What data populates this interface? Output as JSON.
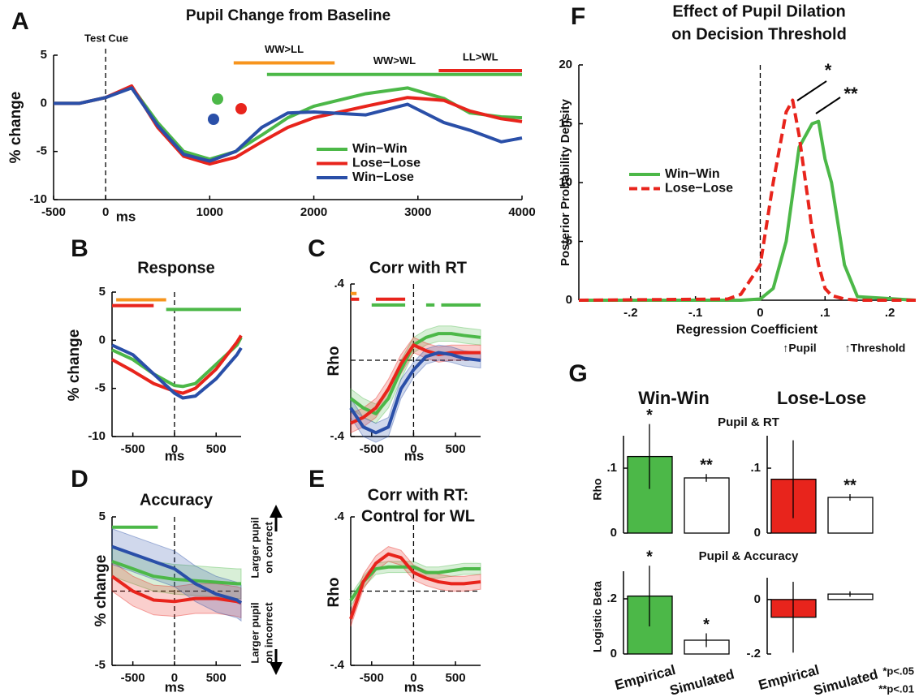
{
  "chart_data": [
    {
      "type": "line",
      "panel": "A",
      "title": "Pupil Change from Baseline",
      "xlabel": "ms",
      "ylabel": "% change",
      "legend": "lower right",
      "xlim": [
        -500,
        4000
      ],
      "ylim": [
        -10,
        5
      ],
      "xticks": [
        -500,
        0,
        1000,
        2000,
        3000,
        4000
      ],
      "yticks": [
        -10,
        -5,
        0,
        5
      ],
      "vline": 0,
      "annotations": [
        "Test Cue"
      ],
      "x": [
        -500,
        -250,
        0,
        250,
        500,
        750,
        1000,
        1250,
        1500,
        1750,
        2000,
        2500,
        2900,
        3250,
        3500,
        3800,
        4000
      ],
      "series": [
        {
          "name": "Win−Win",
          "color": "#4cb848",
          "values": [
            0,
            0,
            0.6,
            1.7,
            -2,
            -5,
            -5.8,
            -5,
            -3.3,
            -1.5,
            -0.3,
            1,
            1.6,
            0.5,
            -1,
            -1.4,
            -1.5
          ]
        },
        {
          "name": "Lose−Lose",
          "color": "#e8241c",
          "values": [
            0,
            0,
            0.6,
            1.8,
            -2.5,
            -5.5,
            -6.3,
            -5.6,
            -4,
            -2.5,
            -1.5,
            -0.3,
            0.6,
            0.3,
            -0.8,
            -1.6,
            -1.9
          ]
        },
        {
          "name": "Win−Lose",
          "color": "#2a4fa8",
          "values": [
            0,
            0,
            0.6,
            1.6,
            -2.3,
            -5.3,
            -6,
            -5,
            -2.5,
            -1,
            -0.9,
            -1.2,
            -0.1,
            -2,
            -2.8,
            -4,
            -3.6
          ]
        }
      ],
      "sig_bars": [
        {
          "label": "WW>LL",
          "color": "#f7941d",
          "x": [
            1230,
            2200
          ],
          "y": 4.2
        },
        {
          "label": "WW>WL",
          "color": "#4cb848",
          "x": [
            1550,
            4000
          ],
          "y": 3.0
        },
        {
          "label": "LL>WL",
          "color": "#e8241c",
          "x": [
            3200,
            4000
          ],
          "y": 3.4
        }
      ]
    },
    {
      "type": "line",
      "panel": "B",
      "title": "Response",
      "xlabel": "ms",
      "ylabel": "% change",
      "xlim": [
        -750,
        800
      ],
      "ylim": [
        -10,
        5
      ],
      "xticks": [
        -500,
        0,
        500
      ],
      "yticks": [
        -10,
        -5,
        0,
        5
      ],
      "vline": 0,
      "x": [
        -750,
        -500,
        -250,
        0,
        100,
        250,
        500,
        750,
        800
      ],
      "series": [
        {
          "color": "#4cb848",
          "values": [
            -1,
            -2,
            -3.5,
            -4.7,
            -4.8,
            -4.5,
            -2.5,
            -0.5,
            0.3
          ]
        },
        {
          "color": "#e8241c",
          "values": [
            -2,
            -3.2,
            -4.5,
            -5.3,
            -5.5,
            -5,
            -3,
            -0.2,
            0.5
          ]
        },
        {
          "color": "#2a4fa8",
          "values": [
            -0.5,
            -1.5,
            -3.5,
            -5.5,
            -6,
            -5.8,
            -4,
            -1.5,
            -0.8
          ]
        }
      ],
      "sig_bars": [
        {
          "color": "#f7941d",
          "x": [
            -700,
            -100
          ],
          "y": 4.2
        },
        {
          "color": "#e8241c",
          "x": [
            -750,
            -250
          ],
          "y": 3.6
        },
        {
          "color": "#4cb848",
          "x": [
            -100,
            800
          ],
          "y": 3.2
        }
      ]
    },
    {
      "type": "line",
      "panel": "C",
      "title": "Corr with RT",
      "xlabel": "ms",
      "ylabel": "Rho",
      "xlim": [
        -750,
        800
      ],
      "ylim": [
        -0.4,
        0.4
      ],
      "xticks": [
        -500,
        0,
        500
      ],
      "yticks": [
        {
          "value": -0.4,
          "label": "-.4"
        },
        {
          "value": 0.4,
          "label": ".4"
        }
      ],
      "vline": 0,
      "hline": 0,
      "x": [
        -750,
        -600,
        -450,
        -300,
        -150,
        0,
        150,
        300,
        450,
        600,
        800
      ],
      "series": [
        {
          "color": "#4cb848",
          "values": [
            -0.2,
            -0.25,
            -0.28,
            -0.2,
            -0.05,
            0.08,
            0.12,
            0.14,
            0.14,
            0.13,
            0.12
          ],
          "ci": [
            0.05,
            0.05,
            0.05,
            0.05,
            0.05,
            0.04,
            0.04,
            0.04,
            0.04,
            0.04,
            0.04
          ]
        },
        {
          "color": "#e8241c",
          "values": [
            -0.33,
            -0.3,
            -0.25,
            -0.15,
            -0.02,
            0.08,
            0.05,
            0.03,
            0.04,
            0.04,
            0.04
          ],
          "ci": [
            0.05,
            0.05,
            0.05,
            0.05,
            0.05,
            0.04,
            0.04,
            0.04,
            0.04,
            0.04,
            0.04
          ]
        },
        {
          "color": "#2a4fa8",
          "values": [
            -0.25,
            -0.35,
            -0.38,
            -0.35,
            -0.15,
            -0.05,
            0.02,
            0.04,
            0.03,
            0.01,
            0
          ],
          "ci": [
            0.05,
            0.05,
            0.05,
            0.05,
            0.05,
            0.04,
            0.04,
            0.04,
            0.04,
            0.04,
            0.04
          ]
        }
      ],
      "sig_bars": [
        {
          "color": "#f7941d",
          "x": [
            -750,
            -680
          ],
          "y": 0.35
        },
        {
          "color": "#e8241c",
          "x": [
            -750,
            -650
          ],
          "y": 0.32
        },
        {
          "color": "#e8241c",
          "x": [
            -450,
            -100
          ],
          "y": 0.32
        },
        {
          "color": "#4cb848",
          "x": [
            -500,
            -100
          ],
          "y": 0.29
        },
        {
          "color": "#4cb848",
          "x": [
            150,
            250
          ],
          "y": 0.29
        },
        {
          "color": "#4cb848",
          "x": [
            330,
            800
          ],
          "y": 0.29
        }
      ]
    },
    {
      "type": "line",
      "panel": "D",
      "title": "Accuracy",
      "xlabel": "ms",
      "ylabel": "% change",
      "xlim": [
        -750,
        800
      ],
      "ylim": [
        -5,
        5
      ],
      "xticks": [
        -500,
        0,
        500
      ],
      "yticks": [
        -5,
        5
      ],
      "vline": 0,
      "hline": 0,
      "annotations": [
        "Larger pupil",
        "on correct",
        "Larger pupil",
        "on incorrect"
      ],
      "x": [
        -750,
        -500,
        -250,
        0,
        250,
        500,
        750,
        800
      ],
      "series": [
        {
          "color": "#4cb848",
          "values": [
            2,
            1.5,
            1,
            0.8,
            0.7,
            0.6,
            0.5,
            0.5
          ],
          "ci": [
            1,
            1,
            1,
            1,
            1,
            1,
            1,
            1
          ]
        },
        {
          "color": "#e8241c",
          "values": [
            1,
            0,
            -0.6,
            -0.7,
            -0.5,
            -0.5,
            -0.7,
            -0.8
          ],
          "ci": [
            1,
            1,
            1,
            1,
            1,
            1,
            1,
            1
          ]
        },
        {
          "color": "#2a4fa8",
          "values": [
            3,
            2.5,
            2,
            1.5,
            0.5,
            -0.2,
            -0.6,
            -0.8
          ],
          "ci": [
            1.2,
            1.2,
            1.2,
            1.2,
            1.2,
            1.2,
            1.2,
            1.2
          ]
        }
      ],
      "sig_bars": [
        {
          "color": "#4cb848",
          "x": [
            -750,
            -200
          ],
          "y": 4.3
        }
      ]
    },
    {
      "type": "line",
      "panel": "E",
      "title": [
        "Corr with RT:",
        "Control for WL"
      ],
      "xlabel": "ms",
      "ylabel": "Rho",
      "xlim": [
        -750,
        800
      ],
      "ylim": [
        -0.4,
        0.4
      ],
      "xticks": [
        -500,
        0,
        500
      ],
      "yticks": [
        {
          "value": -0.4,
          "label": "-.4"
        },
        {
          "value": 0.4,
          "label": ".4"
        }
      ],
      "vline": 0,
      "hline": 0,
      "x": [
        -750,
        -600,
        -450,
        -300,
        -150,
        0,
        150,
        300,
        450,
        600,
        800
      ],
      "series": [
        {
          "color": "#4cb848",
          "values": [
            -0.05,
            0.05,
            0.12,
            0.13,
            0.13,
            0.13,
            0.1,
            0.1,
            0.11,
            0.12,
            0.12
          ],
          "ci": [
            0.03,
            0.03,
            0.03,
            0.03,
            0.03,
            0.03,
            0.03,
            0.03,
            0.03,
            0.03,
            0.03
          ]
        },
        {
          "color": "#e8241c",
          "values": [
            -0.15,
            0.05,
            0.15,
            0.2,
            0.18,
            0.1,
            0.07,
            0.05,
            0.04,
            0.04,
            0.05
          ],
          "ci": [
            0.04,
            0.04,
            0.04,
            0.04,
            0.04,
            0.04,
            0.04,
            0.04,
            0.04,
            0.04,
            0.04
          ]
        }
      ]
    },
    {
      "type": "line",
      "panel": "F",
      "title": [
        "Effect of Pupil Dilation",
        "on Decision Threshold"
      ],
      "xlabel": "Regression Coefficient",
      "ylabel": "Posterior Probability Density",
      "legend": "upper left",
      "xlim": [
        -0.28,
        0.24
      ],
      "ylim": [
        0,
        20
      ],
      "xticks": [
        {
          "value": -0.2,
          "label": "-.2"
        },
        {
          "value": -0.1,
          "label": "-.1"
        },
        0,
        {
          "value": 0.1,
          "label": ".1"
        },
        {
          "value": 0.2,
          "label": ".2"
        }
      ],
      "yticks": [
        0,
        5,
        10,
        15,
        20
      ],
      "vline": 0,
      "annotations": [
        "↑Pupil",
        "↑Threshold",
        "*",
        "**"
      ],
      "x": [
        -0.28,
        -0.05,
        -0.03,
        0,
        0.02,
        0.04,
        0.05,
        0.06,
        0.08,
        0.09,
        0.1,
        0.11,
        0.13,
        0.15,
        0.24
      ],
      "series": [
        {
          "name": "Win−Win",
          "color": "#4cb848",
          "values": [
            0,
            0,
            0,
            0.1,
            1,
            5,
            9,
            13,
            15,
            15.2,
            12,
            10,
            3,
            0.3,
            0
          ]
        },
        {
          "name": "Lose−Lose",
          "color": "#e8241c",
          "dash": true,
          "values": [
            0,
            0.1,
            0.5,
            3,
            10,
            16,
            17,
            14,
            6,
            3,
            1,
            0.4,
            0.1,
            0,
            0
          ]
        }
      ]
    },
    {
      "type": "bar",
      "categories": [
        null,
        null
      ],
      "ylabel": "Rho",
      "ylim": [
        0,
        0.15
      ],
      "yticks": [
        0,
        {
          "value": 0.1,
          "label": ".1"
        }
      ],
      "values": [
        0.118,
        0.085
      ],
      "errors": [
        0.05,
        0.006
      ],
      "colors": [
        "#4cb848",
        "#ffffff"
      ],
      "stars": [
        "*",
        "**"
      ]
    },
    {
      "type": "bar",
      "categories": [
        null,
        null
      ],
      "ylim": [
        0,
        0.15
      ],
      "yticks": [
        0,
        {
          "value": 0.1,
          "label": ".1"
        }
      ],
      "values": [
        0.083,
        0.055
      ],
      "errors": [
        0.06,
        0.005
      ],
      "colors": [
        "#e8241c",
        "#ffffff"
      ],
      "stars": [
        null,
        "**"
      ]
    },
    {
      "type": "bar",
      "categories": [
        "Empirical",
        "Simulated"
      ],
      "ylabel": "Logistic Beta",
      "ylim": [
        0,
        0.3
      ],
      "yticks": [
        0,
        {
          "value": 0.2,
          "label": ".2"
        }
      ],
      "values": [
        0.21,
        0.05
      ],
      "errors": [
        0.11,
        0.025
      ],
      "colors": [
        "#4cb848",
        "#ffffff"
      ],
      "stars": [
        "*",
        "*"
      ]
    },
    {
      "type": "bar",
      "categories": [
        "Empirical",
        "Simulated"
      ],
      "ylim": [
        -0.2,
        0.08
      ],
      "yticks": [
        {
          "value": -0.2,
          "label": "-.2"
        },
        0
      ],
      "values": [
        -0.065,
        0.02
      ],
      "errors": [
        0.13,
        0.01
      ],
      "colors": [
        "#e8241c",
        "#ffffff"
      ],
      "stars": [
        null,
        null
      ]
    }
  ],
  "panel_g": {
    "panel": "G",
    "column_titles": [
      "Win-Win",
      "Lose-Lose"
    ],
    "row_titles": [
      "Pupil & RT",
      "Pupil & Accuracy"
    ],
    "footnotes": [
      "*p<.05",
      "**p<.01"
    ]
  }
}
